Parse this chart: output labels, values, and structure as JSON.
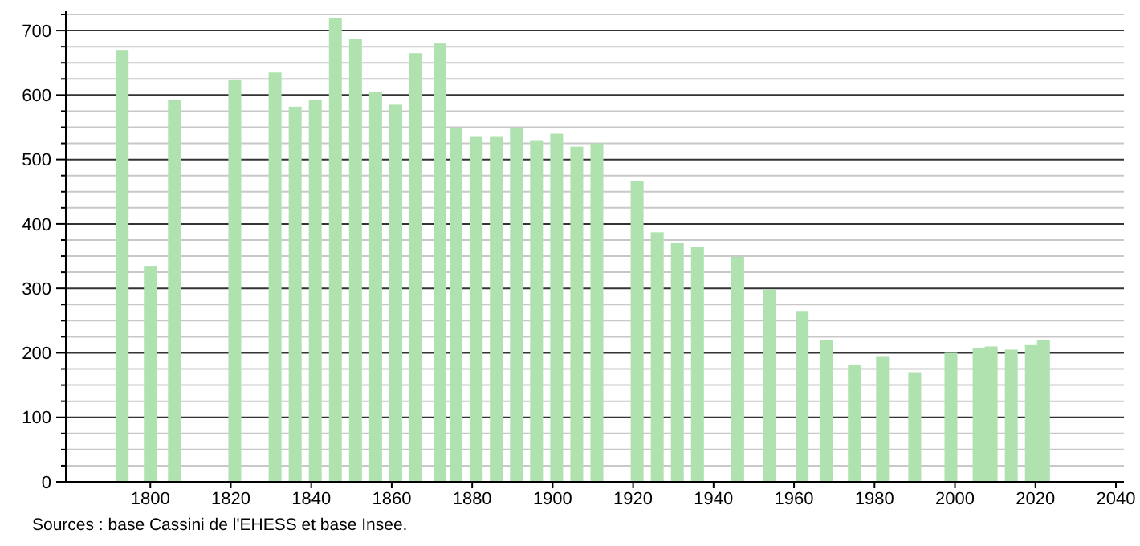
{
  "chart_data": {
    "type": "bar",
    "x": [
      1793,
      1800,
      1806,
      1821,
      1831,
      1836,
      1841,
      1846,
      1851,
      1856,
      1861,
      1866,
      1872,
      1876,
      1881,
      1886,
      1891,
      1896,
      1901,
      1906,
      1911,
      1921,
      1926,
      1931,
      1936,
      1946,
      1954,
      1962,
      1968,
      1975,
      1982,
      1990,
      1999,
      2006,
      2009,
      2014,
      2019,
      2022
    ],
    "values": [
      670,
      335,
      592,
      623,
      635,
      582,
      593,
      719,
      687,
      605,
      585,
      665,
      680,
      549,
      535,
      535,
      549,
      530,
      540,
      520,
      525,
      467,
      387,
      370,
      365,
      349,
      298,
      265,
      220,
      182,
      195,
      170,
      200,
      207,
      210,
      205,
      212,
      220
    ],
    "color": "#b0e2b0",
    "xlim": [
      1779,
      2042
    ],
    "xticks": [
      1800,
      1820,
      1840,
      1860,
      1880,
      1900,
      1920,
      1940,
      1960,
      1980,
      2000,
      2020,
      2040
    ],
    "ylim": [
      0,
      730
    ],
    "yticks": [
      0,
      100,
      200,
      300,
      400,
      500,
      600,
      700
    ],
    "grid": "y",
    "annotations": [
      "Sources : base Cassini de l'EHESS et base Insee."
    ]
  }
}
